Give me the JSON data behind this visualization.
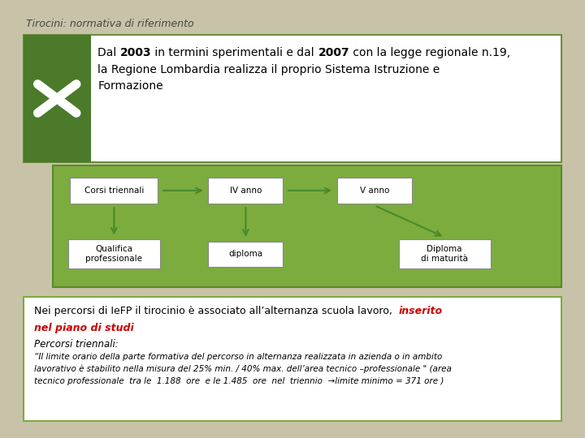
{
  "background_color": "#c8c3a8",
  "title": "Tirocini: normativa di riferimento",
  "title_fontsize": 9,
  "title_color": "#444444",
  "top_box": {
    "bg": "#ffffff",
    "border": "#6b8e3e",
    "icon_bg": "#4a7a2a",
    "icon_color": "#ffffff",
    "line1_parts": [
      [
        "Dal ",
        false
      ],
      [
        "2003",
        true
      ],
      [
        " in termini sperimentali e dal ",
        false
      ],
      [
        "2007",
        true
      ],
      [
        " con la legge regionale n.19,",
        false
      ]
    ],
    "line2": "la Regione Lombardia realizza il proprio Sistema Istruzione e",
    "line3": "Formazione"
  },
  "flow_box": {
    "bg": "#7cac3e",
    "border": "#5a8a2a",
    "arrow_color": "#4a8a2a"
  },
  "bottom_box": {
    "bg": "#ffffff",
    "border": "#7cac3e",
    "line1_normal": "Nei percorsi di IeFP il tirocinio è associato all’alternanza scuola lavoro,  ",
    "line1_red": "inserito",
    "line2_red": "nel piano di studi",
    "line3": "Percorsi triennali:",
    "line4": "“Il limite orario della parte formativa del percorso in alternanza realizzata in azienda o in ambito",
    "line5": "lavorativo è stabilito nella misura del 25% min. / 40% max. dell’area tecnico –professionale \" (area",
    "line6": "tecnico professionale  tra le  1.188  ore  e le 1.485  ore  nel  triennio  →limite minimo = 371 ore )"
  }
}
